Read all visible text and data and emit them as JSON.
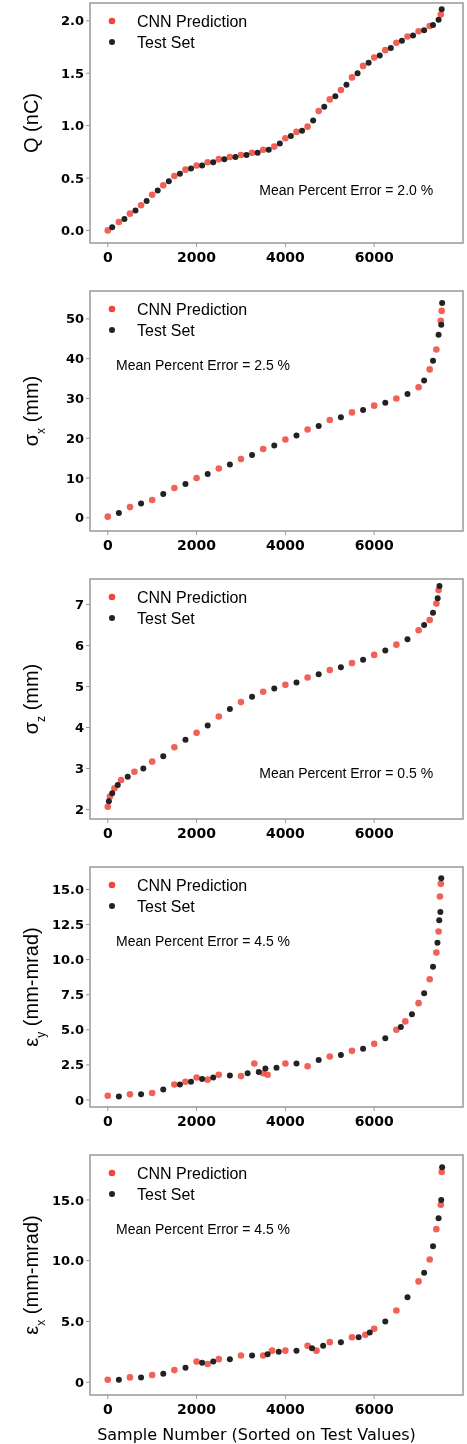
{
  "chart_data": [
    {
      "type": "scatter",
      "ylabel": "Q (nC)",
      "xlim": [
        -400,
        8000
      ],
      "xticks": [
        0,
        2000,
        4000,
        6000
      ],
      "ylim": [
        -0.12,
        2.17
      ],
      "yticks": [
        {
          "value": 0,
          "label": "0.0"
        },
        {
          "value": 0.5,
          "label": "0.5"
        },
        {
          "value": 1,
          "label": "1.0"
        },
        {
          "value": 1.5,
          "label": "1.5"
        },
        {
          "value": 2,
          "label": "2.0"
        }
      ],
      "legend": "top left",
      "marker": "circle",
      "annotations": [
        "Mean Percent Error = 2.0 %"
      ],
      "series": [
        {
          "name": "CNN Prediction",
          "color": "#f0453a",
          "x": [
            0,
            250,
            500,
            750,
            1000,
            1250,
            1500,
            1750,
            2000,
            2250,
            2500,
            2750,
            3000,
            3250,
            3500,
            3750,
            4000,
            4250,
            4500,
            4750,
            5000,
            5250,
            5500,
            5750,
            6000,
            6250,
            6500,
            6750,
            7000,
            7250,
            7500
          ],
          "values": [
            0.0,
            0.08,
            0.16,
            0.24,
            0.34,
            0.43,
            0.52,
            0.58,
            0.62,
            0.65,
            0.68,
            0.7,
            0.72,
            0.74,
            0.77,
            0.8,
            0.88,
            0.94,
            0.99,
            1.14,
            1.25,
            1.34,
            1.46,
            1.57,
            1.65,
            1.72,
            1.79,
            1.85,
            1.9,
            1.95,
            2.06
          ]
        },
        {
          "name": "Test Set",
          "color": "#222222",
          "x": [
            100,
            375,
            625,
            875,
            1125,
            1375,
            1625,
            1875,
            2125,
            2375,
            2625,
            2875,
            3125,
            3375,
            3625,
            3875,
            4125,
            4375,
            4625,
            4875,
            5125,
            5375,
            5625,
            5875,
            6125,
            6375,
            6625,
            6875,
            7125,
            7325,
            7450,
            7520
          ],
          "values": [
            0.03,
            0.11,
            0.19,
            0.28,
            0.38,
            0.47,
            0.54,
            0.59,
            0.62,
            0.65,
            0.68,
            0.7,
            0.72,
            0.74,
            0.77,
            0.83,
            0.9,
            0.95,
            1.05,
            1.18,
            1.28,
            1.39,
            1.5,
            1.6,
            1.67,
            1.74,
            1.81,
            1.86,
            1.91,
            1.96,
            2.01,
            2.11
          ]
        }
      ]
    },
    {
      "type": "scatter",
      "ylabel": "σ$_{x}$  (mm)",
      "xlim": [
        -400,
        8000
      ],
      "xticks": [
        0,
        2000,
        4000,
        6000
      ],
      "ylim": [
        -3.3,
        57
      ],
      "yticks": [
        0,
        10,
        20,
        30,
        40,
        50
      ],
      "legend": "top left",
      "marker": "circle",
      "annotations": [
        "Mean Percent Error = 2.5 %"
      ],
      "series": [
        {
          "name": "CNN Prediction",
          "color": "#f0453a",
          "x": [
            0,
            500,
            1000,
            1500,
            2000,
            2500,
            3000,
            3500,
            4000,
            4500,
            5000,
            5500,
            6000,
            6500,
            7000,
            7250,
            7400,
            7500,
            7520
          ],
          "values": [
            0.3,
            2.7,
            4.5,
            7.5,
            10.0,
            12.4,
            14.8,
            17.3,
            19.7,
            22.2,
            24.6,
            26.5,
            28.2,
            30.0,
            32.8,
            37.3,
            42.3,
            49.5,
            52.0
          ]
        },
        {
          "name": "Test Set",
          "color": "#222222",
          "x": [
            250,
            750,
            1250,
            1750,
            2250,
            2750,
            3250,
            3750,
            4250,
            4750,
            5250,
            5750,
            6250,
            6750,
            7125,
            7325,
            7450,
            7510,
            7530
          ],
          "values": [
            1.2,
            3.6,
            6.0,
            8.5,
            11,
            13.4,
            15.8,
            18.2,
            20.7,
            23.1,
            25.3,
            27.1,
            28.9,
            31.1,
            34.5,
            39.5,
            46,
            48.5,
            54
          ]
        }
      ]
    },
    {
      "type": "scatter",
      "ylabel": "σ$_{z}$ (mm)",
      "xlim": [
        -400,
        8000
      ],
      "xticks": [
        0,
        2000,
        4000,
        6000
      ],
      "ylim": [
        1.77,
        7.62
      ],
      "yticks": [
        2,
        3,
        4,
        5,
        6,
        7
      ],
      "legend": "top left",
      "marker": "circle",
      "annotations": [
        "Mean Percent Error = 0.5 %"
      ],
      "series": [
        {
          "name": "CNN Prediction",
          "color": "#f0453a",
          "x": [
            0,
            50,
            150,
            300,
            600,
            1000,
            1500,
            2000,
            2500,
            3000,
            3500,
            4000,
            4500,
            5000,
            5500,
            6000,
            6500,
            7000,
            7250,
            7400,
            7450
          ],
          "values": [
            2.07,
            2.32,
            2.52,
            2.72,
            2.92,
            3.17,
            3.52,
            3.87,
            4.27,
            4.62,
            4.87,
            5.04,
            5.22,
            5.4,
            5.57,
            5.77,
            6.02,
            6.37,
            6.62,
            7.02,
            7.35
          ]
        },
        {
          "name": "Test Set",
          "color": "#222222",
          "x": [
            25,
            100,
            225,
            450,
            800,
            1250,
            1750,
            2250,
            2750,
            3250,
            3750,
            4250,
            4750,
            5250,
            5750,
            6250,
            6750,
            7125,
            7325,
            7430,
            7470
          ],
          "values": [
            2.2,
            2.4,
            2.6,
            2.8,
            3.0,
            3.3,
            3.7,
            4.05,
            4.45,
            4.75,
            4.95,
            5.1,
            5.3,
            5.47,
            5.65,
            5.88,
            6.15,
            6.5,
            6.8,
            7.15,
            7.45
          ]
        }
      ]
    },
    {
      "type": "scatter",
      "ylabel": "ε$_{y}$  (mm-mrad)",
      "xlim": [
        -400,
        8000
      ],
      "xticks": [
        0,
        2000,
        4000,
        6000
      ],
      "ylim": [
        -0.5,
        16.6
      ],
      "yticks": [
        0,
        2.5,
        {
          "value": 5,
          "label": "5.0"
        },
        7.5,
        {
          "value": 10,
          "label": "10.0"
        },
        12.5,
        {
          "value": 15,
          "label": "15.0"
        }
      ],
      "legend": "top left",
      "marker": "circle",
      "annotations": [
        "Mean Percent Error = 4.5 %"
      ],
      "series": [
        {
          "name": "CNN Prediction",
          "color": "#f0453a",
          "x": [
            0,
            500,
            1000,
            1500,
            1750,
            2000,
            2250,
            2500,
            3000,
            3300,
            3500,
            3600,
            4000,
            4500,
            5000,
            5500,
            6000,
            6500,
            6700,
            7000,
            7250,
            7400,
            7450,
            7480,
            7500
          ],
          "values": [
            0.3,
            0.4,
            0.5,
            1.1,
            1.3,
            1.6,
            1.45,
            1.8,
            1.7,
            2.6,
            1.9,
            1.8,
            2.6,
            2.4,
            3.1,
            3.5,
            4.0,
            5.0,
            5.6,
            6.9,
            8.6,
            10.5,
            12.0,
            14.5,
            15.4
          ]
        },
        {
          "name": "Test Set",
          "color": "#222222",
          "x": [
            250,
            750,
            1250,
            1625,
            1875,
            2125,
            2375,
            2750,
            3150,
            3400,
            3550,
            3800,
            4250,
            4750,
            5250,
            5750,
            6250,
            6600,
            6850,
            7125,
            7325,
            7425,
            7465,
            7490,
            7510
          ],
          "values": [
            0.25,
            0.4,
            0.75,
            1.1,
            1.3,
            1.5,
            1.6,
            1.75,
            1.9,
            2.0,
            2.25,
            2.3,
            2.6,
            2.85,
            3.2,
            3.65,
            4.4,
            5.2,
            6.1,
            7.6,
            9.5,
            11.2,
            12.8,
            13.4,
            15.8
          ]
        }
      ]
    },
    {
      "type": "scatter",
      "ylabel": "ε$_{x}$  (mm-mrad)",
      "xlabel": "Sample Number (Sorted on Test Values)",
      "xlim": [
        -400,
        8000
      ],
      "xticks": [
        0,
        2000,
        4000,
        6000
      ],
      "ylim": [
        -1.05,
        18.7
      ],
      "yticks": [
        0,
        {
          "value": 5,
          "label": "5.0"
        },
        {
          "value": 10,
          "label": "10.0"
        },
        {
          "value": 15,
          "label": "15.0"
        }
      ],
      "legend": "top left",
      "marker": "circle",
      "annotations": [
        "Mean Percent Error = 4.5 %"
      ],
      "series": [
        {
          "name": "CNN Prediction",
          "color": "#f0453a",
          "x": [
            0,
            500,
            1000,
            1500,
            2000,
            2250,
            2500,
            3000,
            3500,
            3700,
            4000,
            4500,
            4700,
            5000,
            5500,
            5800,
            6000,
            6500,
            7000,
            7250,
            7400,
            7500,
            7520
          ],
          "values": [
            0.2,
            0.4,
            0.6,
            1.0,
            1.7,
            1.5,
            1.9,
            2.2,
            2.2,
            2.6,
            2.6,
            3.0,
            2.6,
            3.3,
            3.7,
            3.9,
            4.4,
            5.9,
            8.3,
            10.1,
            12.6,
            14.6,
            17.3
          ]
        },
        {
          "name": "Test Set",
          "color": "#222222",
          "x": [
            250,
            750,
            1250,
            1750,
            2125,
            2375,
            2750,
            3250,
            3600,
            3850,
            4250,
            4600,
            4850,
            5250,
            5650,
            5900,
            6250,
            6750,
            7125,
            7325,
            7450,
            7510,
            7530
          ],
          "values": [
            0.2,
            0.4,
            0.7,
            1.2,
            1.6,
            1.7,
            1.9,
            2.2,
            2.3,
            2.5,
            2.6,
            2.8,
            3.0,
            3.3,
            3.7,
            4.1,
            5.0,
            7.0,
            9.0,
            11.2,
            13.5,
            15,
            17.7
          ]
        }
      ]
    }
  ]
}
